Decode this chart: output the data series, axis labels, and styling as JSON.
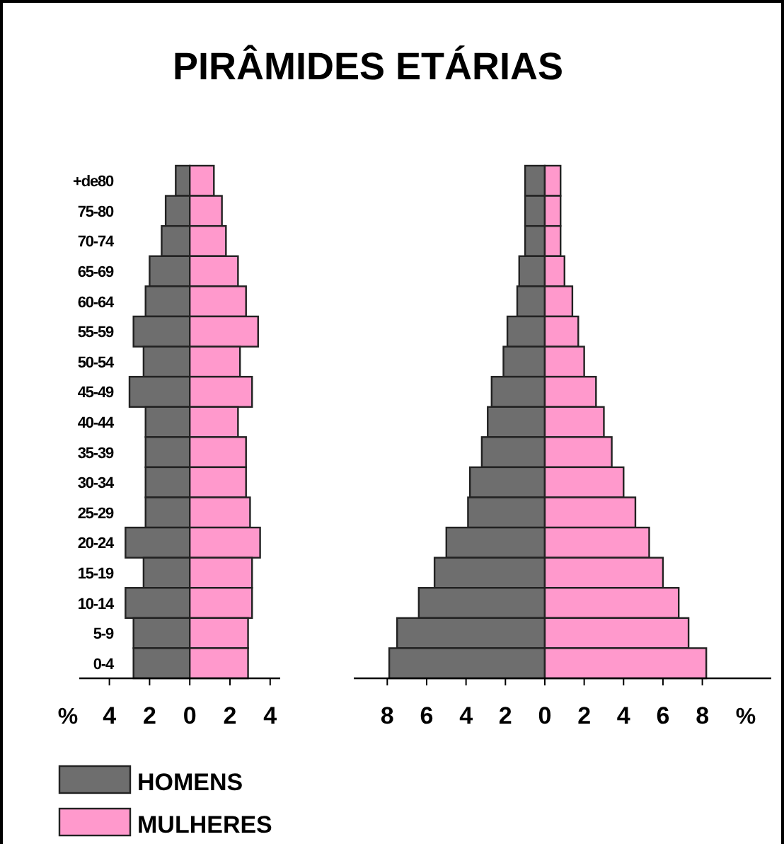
{
  "chart_data": [
    {
      "type": "bar",
      "title": "PIRÂMIDES ETÁRIAS",
      "orientation": "horizontal",
      "stacked": true,
      "xlabel": "%",
      "legend": "bottom left",
      "grid": false,
      "categories": [
        "+de80",
        "75-80",
        "70-74",
        "65-69",
        "60-64",
        "55-59",
        "50-54",
        "45-49",
        "40-44",
        "35-39",
        "30-34",
        "25-29",
        "20-24",
        "15-19",
        "10-14",
        "5-9",
        "0-4"
      ],
      "xlim": [
        -5.5,
        4.5
      ],
      "xticks": [
        {
          "value": -4,
          "label": "4"
        },
        {
          "value": -2,
          "label": "2"
        },
        0,
        2,
        4
      ],
      "series": [
        {
          "name": "HOMENS",
          "color": "#6e6e6e",
          "values": [
            -0.7,
            -1.2,
            -1.4,
            -2.0,
            -2.2,
            -2.8,
            -2.3,
            -3.0,
            -2.2,
            -2.2,
            -2.2,
            -2.2,
            -3.2,
            -2.3,
            -3.2,
            -2.8,
            -2.8
          ]
        },
        {
          "name": "MULHERES",
          "color": "#ff99cc",
          "values": [
            1.2,
            1.6,
            1.8,
            2.4,
            2.8,
            3.4,
            2.5,
            3.1,
            2.4,
            2.8,
            2.8,
            3.0,
            3.5,
            3.1,
            3.1,
            2.9,
            2.9
          ]
        }
      ]
    },
    {
      "type": "bar",
      "orientation": "horizontal",
      "stacked": true,
      "xlabel": "%",
      "grid": false,
      "tick_labels": "x",
      "categories": [
        null,
        null,
        null,
        null,
        null,
        null,
        null,
        null,
        null,
        null,
        null,
        null,
        null,
        null,
        null,
        null,
        null
      ],
      "xlim": [
        -9.7,
        11.5
      ],
      "xticks": [
        {
          "value": -8,
          "label": "8"
        },
        {
          "value": -6,
          "label": "6"
        },
        {
          "value": -4,
          "label": "4"
        },
        {
          "value": -2,
          "label": "2"
        },
        0,
        2,
        4,
        6,
        8
      ],
      "series": [
        {
          "color": "#6e6e6e",
          "values": [
            -1.0,
            -1.0,
            -1.0,
            -1.3,
            -1.4,
            -1.9,
            -2.1,
            -2.7,
            -2.9,
            -3.2,
            -3.8,
            -3.9,
            -5.0,
            -5.6,
            -6.4,
            -7.5,
            -7.9
          ]
        },
        {
          "color": "#ff99cc",
          "values": [
            0.8,
            0.8,
            0.8,
            1.0,
            1.4,
            1.7,
            2.0,
            2.6,
            3.0,
            3.4,
            4.0,
            4.6,
            5.3,
            6.0,
            6.8,
            7.3,
            8.2
          ]
        }
      ]
    }
  ]
}
